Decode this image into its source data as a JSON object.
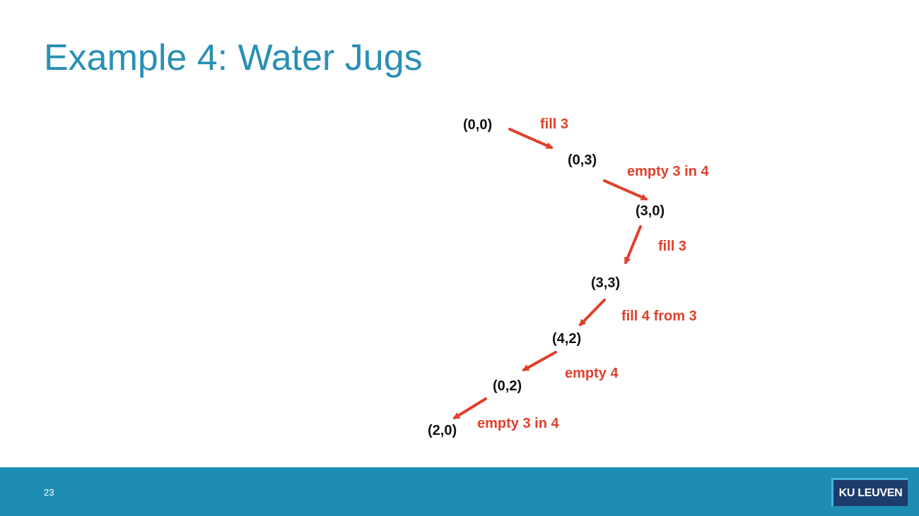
{
  "slide": {
    "title": "Example 4: Water Jugs",
    "page_number": "23",
    "logo_text": "KU LEUVEN"
  },
  "colors": {
    "title": "#2a8fb5",
    "footer": "#1e8db3",
    "action": "#e0402c",
    "state": "#111111",
    "logo_bg": "#1d3c6e",
    "logo_border": "#4ab3df"
  },
  "states": [
    "(0,0)",
    "(0,3)",
    "(3,0)",
    "(3,3)",
    "(4,2)",
    "(0,2)",
    "(2,0)"
  ],
  "actions": [
    "fill 3",
    "empty 3 in 4",
    "fill 3",
    "fill 4 from 3",
    "empty 4",
    "empty 3 in 4"
  ]
}
